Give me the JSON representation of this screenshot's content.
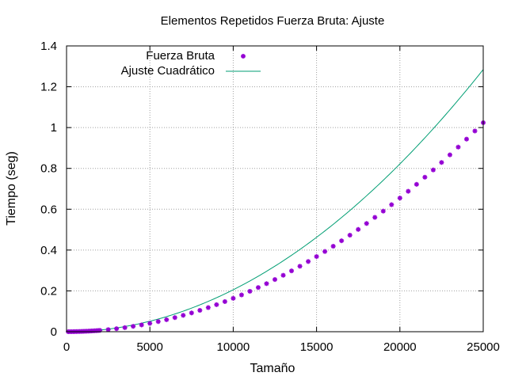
{
  "chart_data": {
    "type": "scatter",
    "title": "Elementos Repetidos Fuerza Bruta: Ajuste",
    "xlabel": "Tamaño",
    "ylabel": "Tiempo (seg)",
    "xlim": [
      0,
      25000
    ],
    "ylim": [
      0,
      1.4
    ],
    "xticks": [
      0,
      5000,
      10000,
      15000,
      20000,
      25000
    ],
    "xtick_labels": [
      "0",
      "5000",
      "10000",
      "15000",
      "20000",
      "25000"
    ],
    "yticks": [
      0,
      0.2,
      0.4,
      0.6,
      0.8,
      1.0,
      1.2,
      1.4
    ],
    "ytick_labels": [
      "0",
      "0.2",
      "0.4",
      "0.6",
      "0.8",
      "1",
      "1.2",
      "1.4"
    ],
    "grid": true,
    "legend_position": "top-left",
    "series": [
      {
        "name": "Fuerza Bruta",
        "kind": "points",
        "color": "#9400d3",
        "x": [
          100,
          200,
          300,
          400,
          500,
          600,
          700,
          800,
          900,
          1000,
          1100,
          1200,
          1300,
          1400,
          1500,
          1600,
          1700,
          1800,
          1900,
          2000,
          2500,
          3000,
          3500,
          4000,
          4500,
          5000,
          5500,
          6000,
          6500,
          7000,
          7500,
          8000,
          8500,
          9000,
          9500,
          10000,
          10500,
          11000,
          11500,
          12000,
          12500,
          13000,
          13500,
          14000,
          14500,
          15000,
          15500,
          16000,
          16500,
          17000,
          17500,
          18000,
          18500,
          19000,
          19500,
          20000,
          20500,
          21000,
          21500,
          22000,
          22500,
          23000,
          23500,
          24000,
          24500,
          25000
        ],
        "y": [
          0.0,
          0.0001,
          0.0001,
          0.0003,
          0.0005,
          0.0007,
          0.0009,
          0.0011,
          0.0014,
          0.0017,
          0.0021,
          0.0024,
          0.0028,
          0.0032,
          0.0037,
          0.0042,
          0.0047,
          0.0052,
          0.0058,
          0.0064,
          0.0102,
          0.0148,
          0.0201,
          0.0262,
          0.0331,
          0.0409,
          0.0495,
          0.0589,
          0.0691,
          0.0802,
          0.092,
          0.1047,
          0.1182,
          0.1325,
          0.1476,
          0.1636,
          0.1803,
          0.1979,
          0.2163,
          0.2355,
          0.2556,
          0.2764,
          0.2981,
          0.3206,
          0.3439,
          0.3681,
          0.3931,
          0.4188,
          0.4455,
          0.4729,
          0.5012,
          0.5302,
          0.5601,
          0.5908,
          0.6224,
          0.6547,
          0.6879,
          0.722,
          0.7568,
          0.7925,
          0.829,
          0.8663,
          0.9045,
          0.9434,
          0.9832,
          1.0239
        ]
      },
      {
        "name": "Ajuste Cuadrático",
        "kind": "line",
        "color": "#009e73",
        "coefficient": 2.055e-09
      }
    ]
  }
}
